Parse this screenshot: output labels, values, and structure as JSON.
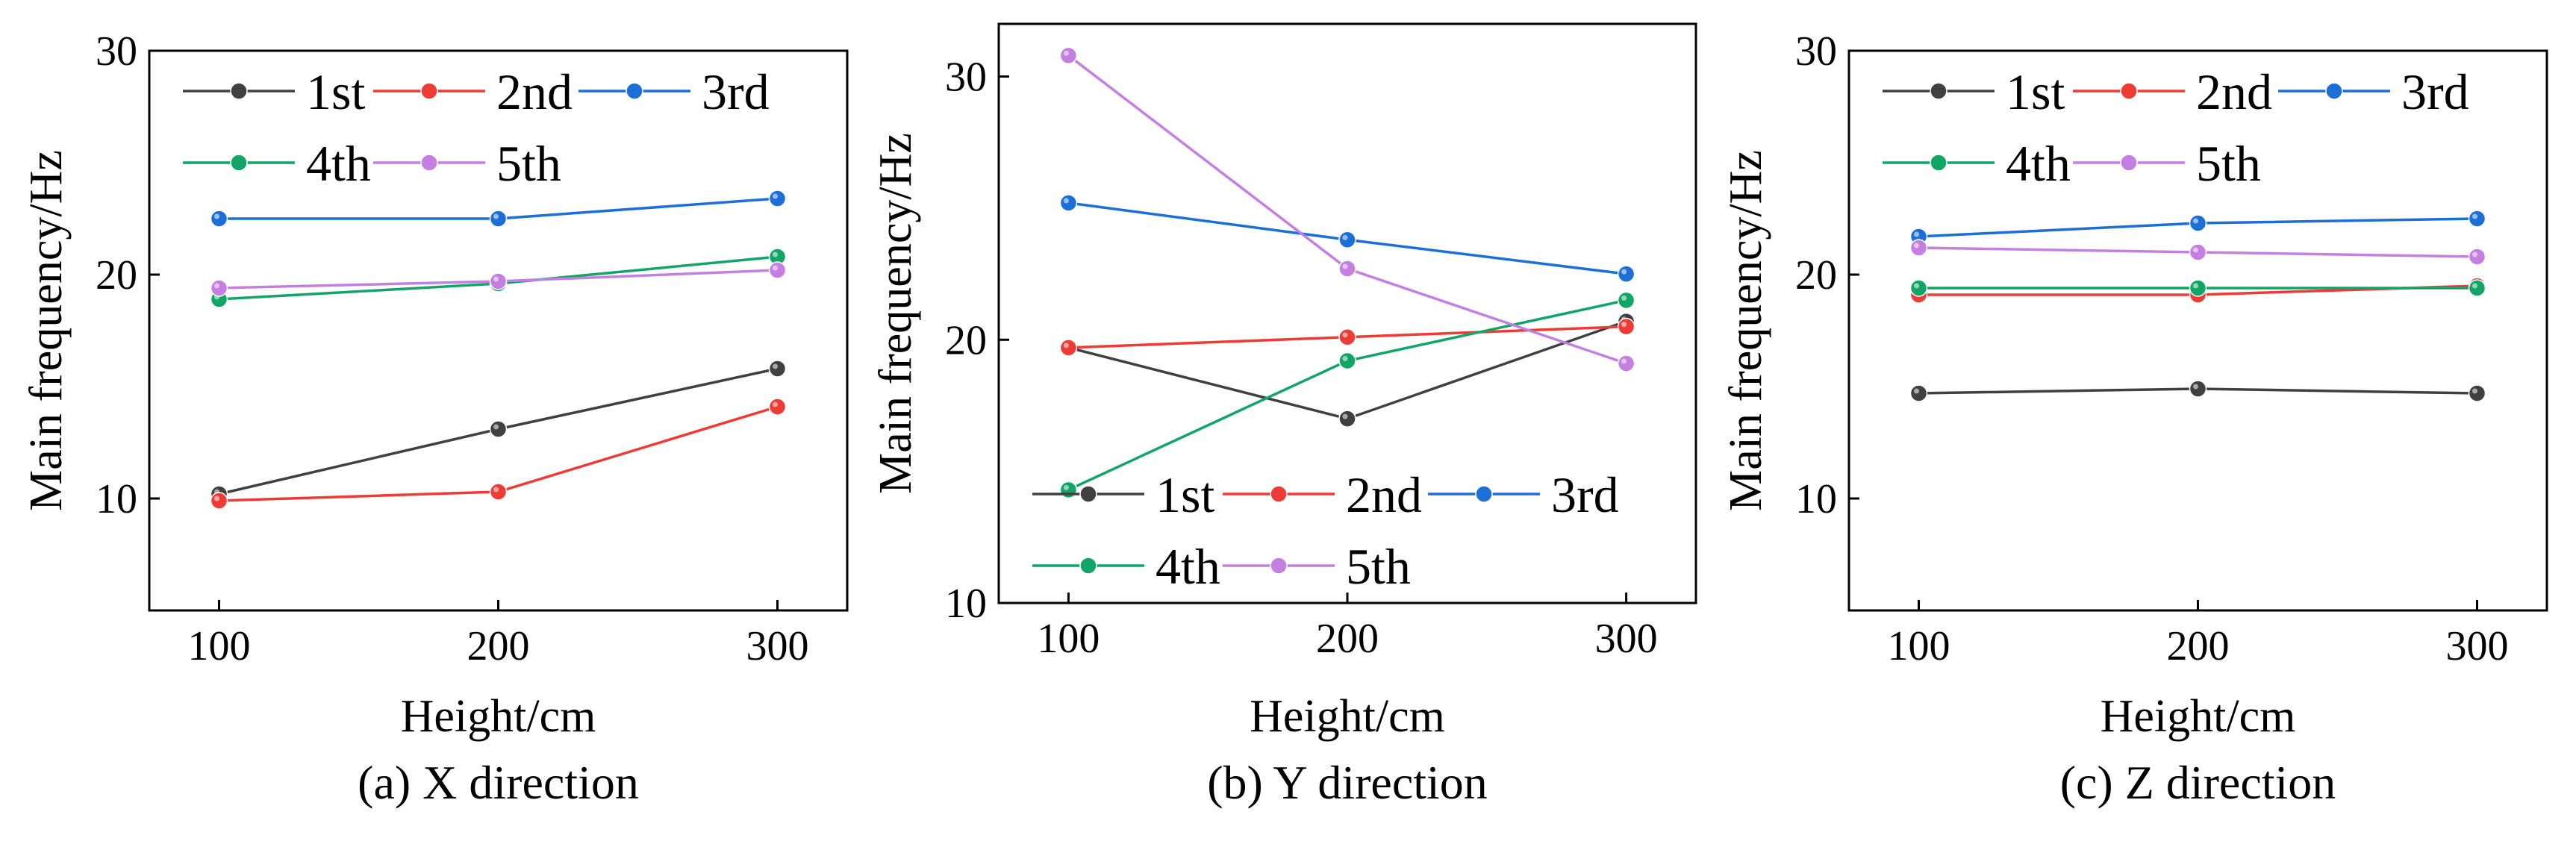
{
  "figure": {
    "colors": {
      "1st": "#404040",
      "2nd": "#ef3b36",
      "3rd": "#1c6fd6",
      "4th": "#12a567",
      "5th": "#c47fe0",
      "axis": "#000000"
    }
  },
  "chart_data": [
    {
      "type": "line",
      "caption": "(a) X direction",
      "xlabel": "Height/cm",
      "ylabel": "Main frequency/Hz",
      "x": [
        100,
        200,
        300
      ],
      "xticks": [
        100,
        200,
        300
      ],
      "xlim": [
        75,
        325
      ],
      "yticks": [
        10,
        20,
        30
      ],
      "ylim": [
        5,
        30
      ],
      "legend_position": "top-left",
      "series": [
        {
          "name": "1st",
          "values": [
            10.2,
            13.1,
            15.8
          ]
        },
        {
          "name": "2nd",
          "values": [
            9.9,
            10.3,
            14.1
          ]
        },
        {
          "name": "3rd",
          "values": [
            22.5,
            22.5,
            23.4
          ]
        },
        {
          "name": "4th",
          "values": [
            18.9,
            19.6,
            20.8
          ]
        },
        {
          "name": "5th",
          "values": [
            19.4,
            19.7,
            20.2
          ]
        }
      ]
    },
    {
      "type": "line",
      "caption": "(b) Y direction",
      "xlabel": "Height/cm",
      "ylabel": "Main frequency/Hz",
      "x": [
        100,
        200,
        300
      ],
      "xticks": [
        100,
        200,
        300
      ],
      "xlim": [
        75,
        325
      ],
      "yticks": [
        10,
        20,
        30
      ],
      "ylim": [
        10,
        32
      ],
      "legend_position": "bottom-left",
      "series": [
        {
          "name": "1st",
          "values": [
            19.7,
            17.0,
            20.7
          ]
        },
        {
          "name": "2nd",
          "values": [
            19.7,
            20.1,
            20.5
          ]
        },
        {
          "name": "3rd",
          "values": [
            25.2,
            23.8,
            22.5
          ]
        },
        {
          "name": "4th",
          "values": [
            14.3,
            19.2,
            21.5
          ]
        },
        {
          "name": "5th",
          "values": [
            30.8,
            22.7,
            19.1
          ]
        }
      ]
    },
    {
      "type": "line",
      "caption": "(c) Z direction",
      "xlabel": "Height/cm",
      "ylabel": "Main frequency/Hz",
      "x": [
        100,
        200,
        300
      ],
      "xticks": [
        100,
        200,
        300
      ],
      "xlim": [
        75,
        325
      ],
      "yticks": [
        10,
        20,
        30
      ],
      "ylim": [
        5,
        30
      ],
      "legend_position": "top-left",
      "series": [
        {
          "name": "1st",
          "values": [
            14.7,
            14.9,
            14.7
          ]
        },
        {
          "name": "2nd",
          "values": [
            19.1,
            19.1,
            19.5
          ]
        },
        {
          "name": "3rd",
          "values": [
            21.7,
            22.3,
            22.5
          ]
        },
        {
          "name": "4th",
          "values": [
            19.4,
            19.4,
            19.4
          ]
        },
        {
          "name": "5th",
          "values": [
            21.2,
            21.0,
            20.8
          ]
        }
      ]
    }
  ]
}
